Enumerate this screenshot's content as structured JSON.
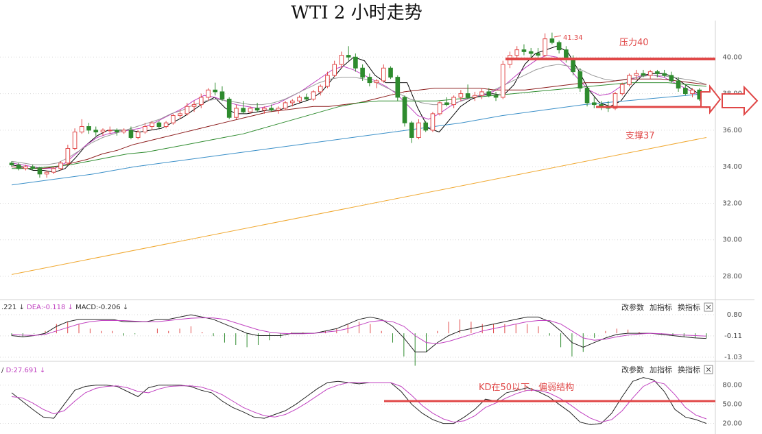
{
  "chart_data": {
    "type": "candlestick",
    "title": "WTI 2 小时走势",
    "price_panel": {
      "ylim": [
        26.8,
        42.0
      ],
      "y_ticks": [
        "40.00",
        "38.00",
        "36.00",
        "34.00",
        "32.00",
        "30.00",
        "28.00"
      ],
      "candles": [
        [
          34.2,
          34.3,
          34.0,
          34.1
        ],
        [
          34.1,
          34.2,
          33.8,
          33.9
        ],
        [
          33.9,
          34.1,
          33.8,
          34.0
        ],
        [
          34.0,
          34.1,
          33.8,
          33.9
        ],
        [
          33.9,
          34.0,
          33.4,
          33.6
        ],
        [
          33.6,
          33.8,
          33.4,
          33.7
        ],
        [
          33.7,
          34.0,
          33.6,
          33.9
        ],
        [
          33.9,
          34.3,
          33.8,
          34.2
        ],
        [
          34.2,
          35.2,
          34.1,
          35.0
        ],
        [
          35.0,
          36.1,
          34.9,
          35.9
        ],
        [
          35.9,
          36.6,
          35.8,
          36.2
        ],
        [
          36.2,
          36.4,
          35.8,
          36.0
        ],
        [
          36.0,
          36.2,
          35.7,
          35.9
        ],
        [
          35.9,
          36.1,
          35.7,
          36.0
        ],
        [
          36.0,
          36.2,
          35.8,
          36.0
        ],
        [
          36.0,
          36.1,
          35.7,
          35.9
        ],
        [
          35.9,
          36.1,
          35.8,
          36.0
        ],
        [
          36.0,
          36.2,
          35.5,
          35.6
        ],
        [
          35.6,
          36.0,
          35.5,
          35.9
        ],
        [
          35.9,
          36.4,
          35.8,
          36.2
        ],
        [
          36.2,
          36.5,
          36.0,
          36.4
        ],
        [
          36.4,
          36.5,
          36.1,
          36.2
        ],
        [
          36.2,
          36.5,
          36.1,
          36.4
        ],
        [
          36.4,
          36.9,
          36.3,
          36.8
        ],
        [
          36.8,
          37.1,
          36.6,
          36.9
        ],
        [
          36.9,
          37.5,
          36.8,
          37.3
        ],
        [
          37.3,
          37.6,
          37.0,
          37.4
        ],
        [
          37.4,
          38.0,
          37.2,
          37.8
        ],
        [
          37.8,
          38.3,
          37.6,
          38.2
        ],
        [
          38.2,
          38.6,
          37.9,
          38.1
        ],
        [
          38.1,
          38.4,
          37.6,
          37.7
        ],
        [
          37.7,
          37.8,
          36.6,
          36.7
        ],
        [
          36.7,
          37.4,
          36.6,
          37.2
        ],
        [
          37.2,
          37.6,
          36.9,
          37.0
        ],
        [
          37.0,
          37.3,
          36.9,
          37.2
        ],
        [
          37.2,
          37.5,
          37.0,
          37.1
        ],
        [
          37.1,
          37.3,
          36.9,
          37.2
        ],
        [
          37.2,
          37.4,
          37.0,
          37.1
        ],
        [
          37.1,
          37.3,
          36.9,
          37.2
        ],
        [
          37.2,
          37.6,
          37.1,
          37.5
        ],
        [
          37.5,
          37.7,
          37.3,
          37.6
        ],
        [
          37.6,
          37.9,
          37.5,
          37.8
        ],
        [
          37.8,
          38.0,
          37.6,
          37.7
        ],
        [
          37.7,
          38.2,
          37.6,
          38.1
        ],
        [
          38.1,
          38.5,
          37.9,
          38.4
        ],
        [
          38.4,
          39.2,
          38.3,
          39.0
        ],
        [
          39.0,
          39.8,
          38.9,
          39.6
        ],
        [
          39.6,
          40.3,
          39.4,
          40.1
        ],
        [
          40.1,
          40.6,
          39.8,
          40.0
        ],
        [
          40.0,
          40.2,
          39.2,
          39.4
        ],
        [
          39.4,
          39.6,
          38.7,
          38.9
        ],
        [
          38.9,
          39.1,
          38.4,
          38.6
        ],
        [
          38.6,
          38.8,
          38.3,
          38.7
        ],
        [
          38.7,
          39.6,
          38.6,
          39.4
        ],
        [
          39.4,
          39.5,
          38.8,
          38.9
        ],
        [
          38.9,
          39.0,
          37.6,
          37.8
        ],
        [
          37.8,
          37.9,
          36.2,
          36.4
        ],
        [
          36.4,
          36.5,
          35.3,
          35.6
        ],
        [
          35.6,
          36.6,
          35.5,
          36.4
        ],
        [
          36.4,
          36.5,
          35.9,
          36.0
        ],
        [
          36.0,
          37.0,
          35.9,
          36.9
        ],
        [
          36.9,
          37.6,
          36.8,
          37.5
        ],
        [
          37.5,
          37.8,
          37.3,
          37.4
        ],
        [
          37.4,
          37.9,
          37.2,
          37.8
        ],
        [
          37.8,
          38.2,
          37.6,
          38.0
        ],
        [
          38.0,
          38.5,
          37.7,
          37.8
        ],
        [
          37.8,
          38.1,
          37.6,
          37.9
        ],
        [
          37.9,
          38.3,
          37.7,
          38.1
        ],
        [
          38.1,
          38.3,
          37.8,
          37.9
        ],
        [
          37.9,
          38.1,
          37.6,
          37.8
        ],
        [
          37.8,
          39.8,
          37.7,
          39.6
        ],
        [
          39.6,
          40.3,
          39.4,
          40.1
        ],
        [
          40.1,
          40.6,
          39.9,
          40.4
        ],
        [
          40.4,
          40.7,
          40.1,
          40.3
        ],
        [
          40.3,
          40.5,
          39.9,
          40.2
        ],
        [
          40.2,
          40.5,
          39.9,
          40.1
        ],
        [
          40.1,
          41.3,
          40.0,
          41.0
        ],
        [
          41.0,
          41.34,
          40.7,
          40.8
        ],
        [
          40.8,
          40.9,
          40.2,
          40.4
        ],
        [
          40.4,
          40.6,
          39.7,
          39.9
        ],
        [
          39.9,
          40.1,
          39.0,
          39.2
        ],
        [
          39.2,
          39.4,
          38.1,
          38.3
        ],
        [
          38.3,
          38.4,
          37.3,
          37.5
        ],
        [
          37.5,
          37.8,
          37.2,
          37.4
        ],
        [
          37.4,
          37.6,
          37.1,
          37.3
        ],
        [
          37.3,
          37.6,
          37.0,
          37.2
        ],
        [
          37.2,
          38.1,
          37.1,
          38.0
        ],
        [
          38.0,
          38.6,
          37.9,
          38.5
        ],
        [
          38.5,
          39.1,
          38.4,
          39.0
        ],
        [
          39.0,
          39.3,
          38.8,
          39.1
        ],
        [
          39.1,
          39.3,
          38.9,
          39.0
        ],
        [
          39.0,
          39.3,
          38.8,
          39.2
        ],
        [
          39.2,
          39.3,
          38.9,
          39.1
        ],
        [
          39.1,
          39.3,
          38.9,
          39.0
        ],
        [
          39.0,
          39.2,
          38.6,
          38.7
        ],
        [
          38.7,
          38.9,
          38.1,
          38.3
        ],
        [
          38.3,
          38.5,
          37.9,
          38.0
        ],
        [
          38.0,
          38.3,
          37.8,
          38.2
        ],
        [
          38.2,
          38.3,
          37.6,
          37.7
        ],
        [
          37.7,
          37.8,
          37.2,
          37.3
        ]
      ],
      "moving_averages": [
        {
          "color": "#000000",
          "values": [
            34.1,
            34.0,
            33.8,
            33.8,
            33.7,
            33.9,
            34.5,
            35.2,
            35.7,
            36.0,
            36.0,
            36.0,
            35.9,
            36.0,
            36.1,
            36.4,
            36.7,
            37.1,
            37.5,
            37.8,
            37.2,
            36.9,
            36.9,
            37.0,
            37.1,
            37.1,
            37.3,
            37.5,
            37.7,
            38.1,
            38.8,
            39.5,
            40.0,
            39.8,
            39.0,
            38.6,
            38.6,
            38.6,
            37.2,
            36.1,
            35.9,
            36.6,
            37.3,
            37.7,
            37.9,
            38.0,
            37.9,
            38.5,
            39.6,
            40.2,
            40.4,
            40.6,
            40.3,
            39.3,
            38.2,
            37.5,
            37.3,
            37.6,
            38.4,
            39.0,
            39.1,
            39.1,
            38.9,
            38.5,
            38.1,
            37.7
          ]
        },
        {
          "color": "#c040c0",
          "values": [
            34.2,
            34.1,
            34.0,
            33.9,
            33.9,
            34.2,
            34.7,
            35.2,
            35.6,
            35.8,
            35.9,
            36.0,
            36.1,
            36.3,
            36.6,
            36.9,
            37.2,
            37.6,
            37.9,
            37.8,
            37.6,
            37.4,
            37.3,
            37.2,
            37.3,
            37.5,
            37.8,
            38.1,
            38.5,
            38.9,
            39.3,
            39.5,
            39.3,
            39.0,
            38.7,
            38.4,
            38.0,
            37.4,
            36.8,
            36.6,
            36.9,
            37.3,
            37.6,
            37.8,
            37.9,
            38.1,
            38.4,
            38.9,
            39.4,
            39.8,
            40.1,
            40.0,
            39.5,
            38.8,
            38.2,
            37.9,
            38.0,
            38.4,
            38.8,
            39.0,
            39.0,
            38.9,
            38.6,
            38.3,
            38.0,
            37.8
          ]
        },
        {
          "color": "#999999",
          "values": [
            34.3,
            34.2,
            34.1,
            34.1,
            34.2,
            34.5,
            34.9,
            35.3,
            35.6,
            35.8,
            36.0,
            36.2,
            36.4,
            36.6,
            36.9,
            37.1,
            37.4,
            37.6,
            37.7,
            37.6,
            37.5,
            37.4,
            37.4,
            37.5,
            37.7,
            38.0,
            38.3,
            38.6,
            38.8,
            38.9,
            38.9,
            38.8,
            38.6,
            38.3,
            38.0,
            37.7,
            37.5,
            37.4,
            37.4,
            37.5,
            37.7,
            37.9,
            38.1,
            38.4,
            38.7,
            39.0,
            39.3,
            39.5,
            39.6,
            39.5,
            39.3,
            39.0,
            38.8,
            38.7,
            38.8,
            38.9,
            39.0,
            39.0,
            38.9,
            38.8,
            38.7,
            38.5
          ]
        },
        {
          "color": "#8b1a1a",
          "values": [
            34.0,
            33.9,
            33.9,
            34.0,
            34.2,
            34.4,
            34.7,
            34.9,
            35.2,
            35.4,
            35.6,
            35.8,
            36.0,
            36.2,
            36.4,
            36.6,
            36.8,
            37.0,
            37.1,
            37.2,
            37.3,
            37.3,
            37.4,
            37.5,
            37.7,
            37.9,
            38.1,
            38.2,
            38.3,
            38.3,
            38.3,
            38.3,
            38.2,
            38.2,
            38.2,
            38.3,
            38.4,
            38.5,
            38.6,
            38.6,
            38.7,
            38.8,
            38.8,
            38.8,
            38.7,
            38.6,
            38.5
          ]
        },
        {
          "color": "#2e8b2e",
          "values": [
            33.9,
            33.9,
            34.0,
            34.1,
            34.3,
            34.5,
            34.7,
            34.8,
            35.0,
            35.2,
            35.4,
            35.6,
            35.8,
            36.1,
            36.4,
            36.7,
            37.0,
            37.3,
            37.5,
            37.6,
            37.6,
            37.6,
            37.6,
            37.7,
            37.8,
            37.9,
            38.0,
            38.1,
            38.2,
            38.3,
            38.4,
            38.5,
            38.6,
            38.6,
            38.6,
            38.5,
            38.4
          ]
        },
        {
          "color": "#3a8fc8",
          "values": [
            33.0,
            33.3,
            33.6,
            34.0,
            34.3,
            34.6,
            34.9,
            35.2,
            35.5,
            35.8,
            36.1,
            36.4,
            36.8,
            37.1,
            37.4,
            37.6,
            37.8,
            38.0
          ]
        },
        {
          "color": "#f0a830",
          "values": [
            28.1,
            35.6
          ]
        }
      ],
      "high_label": "41.34",
      "annotations": {
        "resistance": "压力40",
        "support": "支撑37"
      }
    },
    "macd_panel": {
      "legend": [
        {
          "text": ".221",
          "color": "#333333"
        },
        {
          "text": "DEA:-0.118",
          "color": "#c040c0"
        },
        {
          "text": "MACD:-0.206",
          "color": "#333333"
        }
      ],
      "ylim": [
        -1.15,
        0.92
      ],
      "y_ticks": [
        "0.80",
        "-0.11",
        "-1.03"
      ],
      "dif": [
        -0.1,
        -0.15,
        -0.1,
        0.0,
        0.3,
        0.5,
        0.6,
        0.6,
        0.6,
        0.6,
        0.5,
        0.5,
        0.5,
        0.6,
        0.6,
        0.7,
        0.8,
        0.7,
        0.6,
        0.4,
        0.2,
        0.0,
        -0.1,
        -0.1,
        -0.1,
        0.0,
        0.0,
        0.0,
        0.1,
        0.2,
        0.4,
        0.6,
        0.7,
        0.6,
        0.3,
        -0.2,
        -0.8,
        -0.8,
        -0.4,
        -0.1,
        0.1,
        0.2,
        0.3,
        0.4,
        0.5,
        0.6,
        0.7,
        0.7,
        0.5,
        0.1,
        -0.4,
        -0.6,
        -0.4,
        -0.2,
        -0.05,
        0.0,
        0.0,
        0.0,
        -0.05,
        -0.1,
        -0.15,
        -0.2,
        -0.22
      ],
      "dea": [
        -0.05,
        -0.08,
        -0.09,
        -0.05,
        0.1,
        0.25,
        0.4,
        0.5,
        0.55,
        0.55,
        0.55,
        0.52,
        0.5,
        0.5,
        0.55,
        0.6,
        0.65,
        0.67,
        0.66,
        0.6,
        0.45,
        0.3,
        0.15,
        0.05,
        0.0,
        -0.02,
        -0.02,
        0.0,
        0.05,
        0.1,
        0.2,
        0.35,
        0.5,
        0.55,
        0.5,
        0.3,
        -0.1,
        -0.4,
        -0.45,
        -0.35,
        -0.2,
        -0.05,
        0.1,
        0.2,
        0.3,
        0.4,
        0.5,
        0.55,
        0.55,
        0.4,
        0.1,
        -0.2,
        -0.3,
        -0.25,
        -0.15,
        -0.08,
        -0.03,
        0.0,
        -0.02,
        -0.05,
        -0.08,
        -0.1,
        -0.12
      ],
      "buttons": [
        "改参数",
        "加指标",
        "换指标"
      ]
    },
    "kd_panel": {
      "legend": [
        {
          "text": "/",
          "color": "#333333"
        },
        {
          "text": "D:27.691",
          "color": "#c040c0"
        }
      ],
      "ylim": [
        12,
        98
      ],
      "y_ticks": [
        "80.00",
        "50.00",
        "20.00"
      ],
      "k": [
        68,
        55,
        42,
        30,
        28,
        50,
        72,
        78,
        80,
        80,
        78,
        70,
        62,
        76,
        80,
        80,
        80,
        78,
        72,
        68,
        55,
        45,
        38,
        30,
        28,
        34,
        40,
        50,
        62,
        74,
        84,
        86,
        84,
        82,
        84,
        84,
        84,
        70,
        50,
        36,
        26,
        20,
        20,
        30,
        42,
        58,
        55,
        68,
        72,
        76,
        70,
        62,
        50,
        38,
        22,
        18,
        20,
        36,
        62,
        86,
        92,
        88,
        70,
        42,
        30,
        26,
        20
      ],
      "d": [
        62,
        60,
        52,
        42,
        35,
        40,
        55,
        68,
        75,
        78,
        79,
        76,
        70,
        68,
        74,
        78,
        79,
        79,
        77,
        72,
        65,
        55,
        45,
        38,
        32,
        30,
        34,
        42,
        52,
        63,
        74,
        80,
        84,
        84,
        84,
        84,
        84,
        78,
        64,
        48,
        36,
        27,
        22,
        24,
        32,
        45,
        52,
        60,
        67,
        72,
        72,
        68,
        60,
        50,
        38,
        28,
        22,
        26,
        40,
        60,
        78,
        86,
        82,
        65,
        45,
        33,
        27
      ],
      "level_line": 50,
      "annotation": "KD在50以下，偏弱结构",
      "buttons": [
        "改参数",
        "加指标",
        "换指标"
      ]
    },
    "colors": {
      "up": "#e04747",
      "down": "#2e8b2e",
      "annotation": "#e04747",
      "grid": "#d8d8d8"
    }
  }
}
